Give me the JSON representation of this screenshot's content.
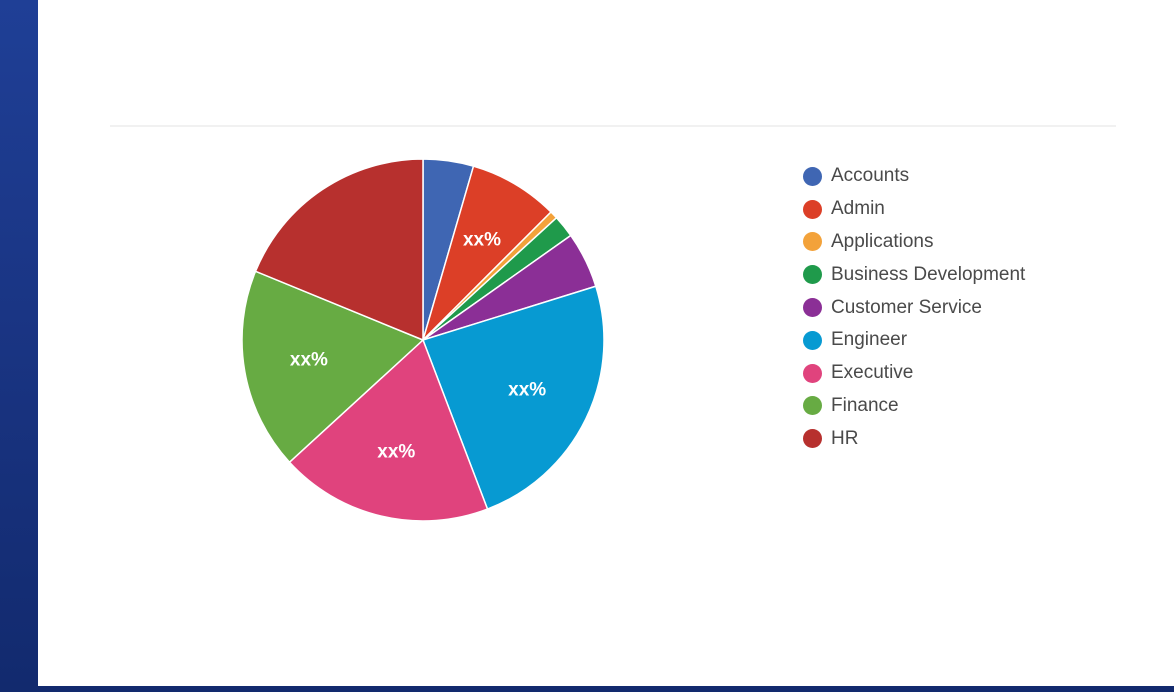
{
  "chart_data": {
    "type": "pie",
    "legend_position": "right",
    "categories": [
      "Accounts",
      "Admin",
      "Applications",
      "Business Development",
      "Customer Service",
      "Engineer",
      "Executive",
      "Finance",
      "HR"
    ],
    "values": [
      4.5,
      8,
      0.7,
      2,
      5,
      24,
      19,
      18,
      18.8
    ],
    "colors": [
      "#3f66b3",
      "#dc3f27",
      "#f3a23a",
      "#1f9a4b",
      "#8b2f96",
      "#079ad2",
      "#e0437d",
      "#67ab43",
      "#b7302e"
    ],
    "data_labels": [
      {
        "category": "Admin",
        "text": "xx%"
      },
      {
        "category": "Engineer",
        "text": "xx%"
      },
      {
        "category": "Executive",
        "text": "xx%"
      },
      {
        "category": "Finance",
        "text": "xx%"
      }
    ]
  }
}
